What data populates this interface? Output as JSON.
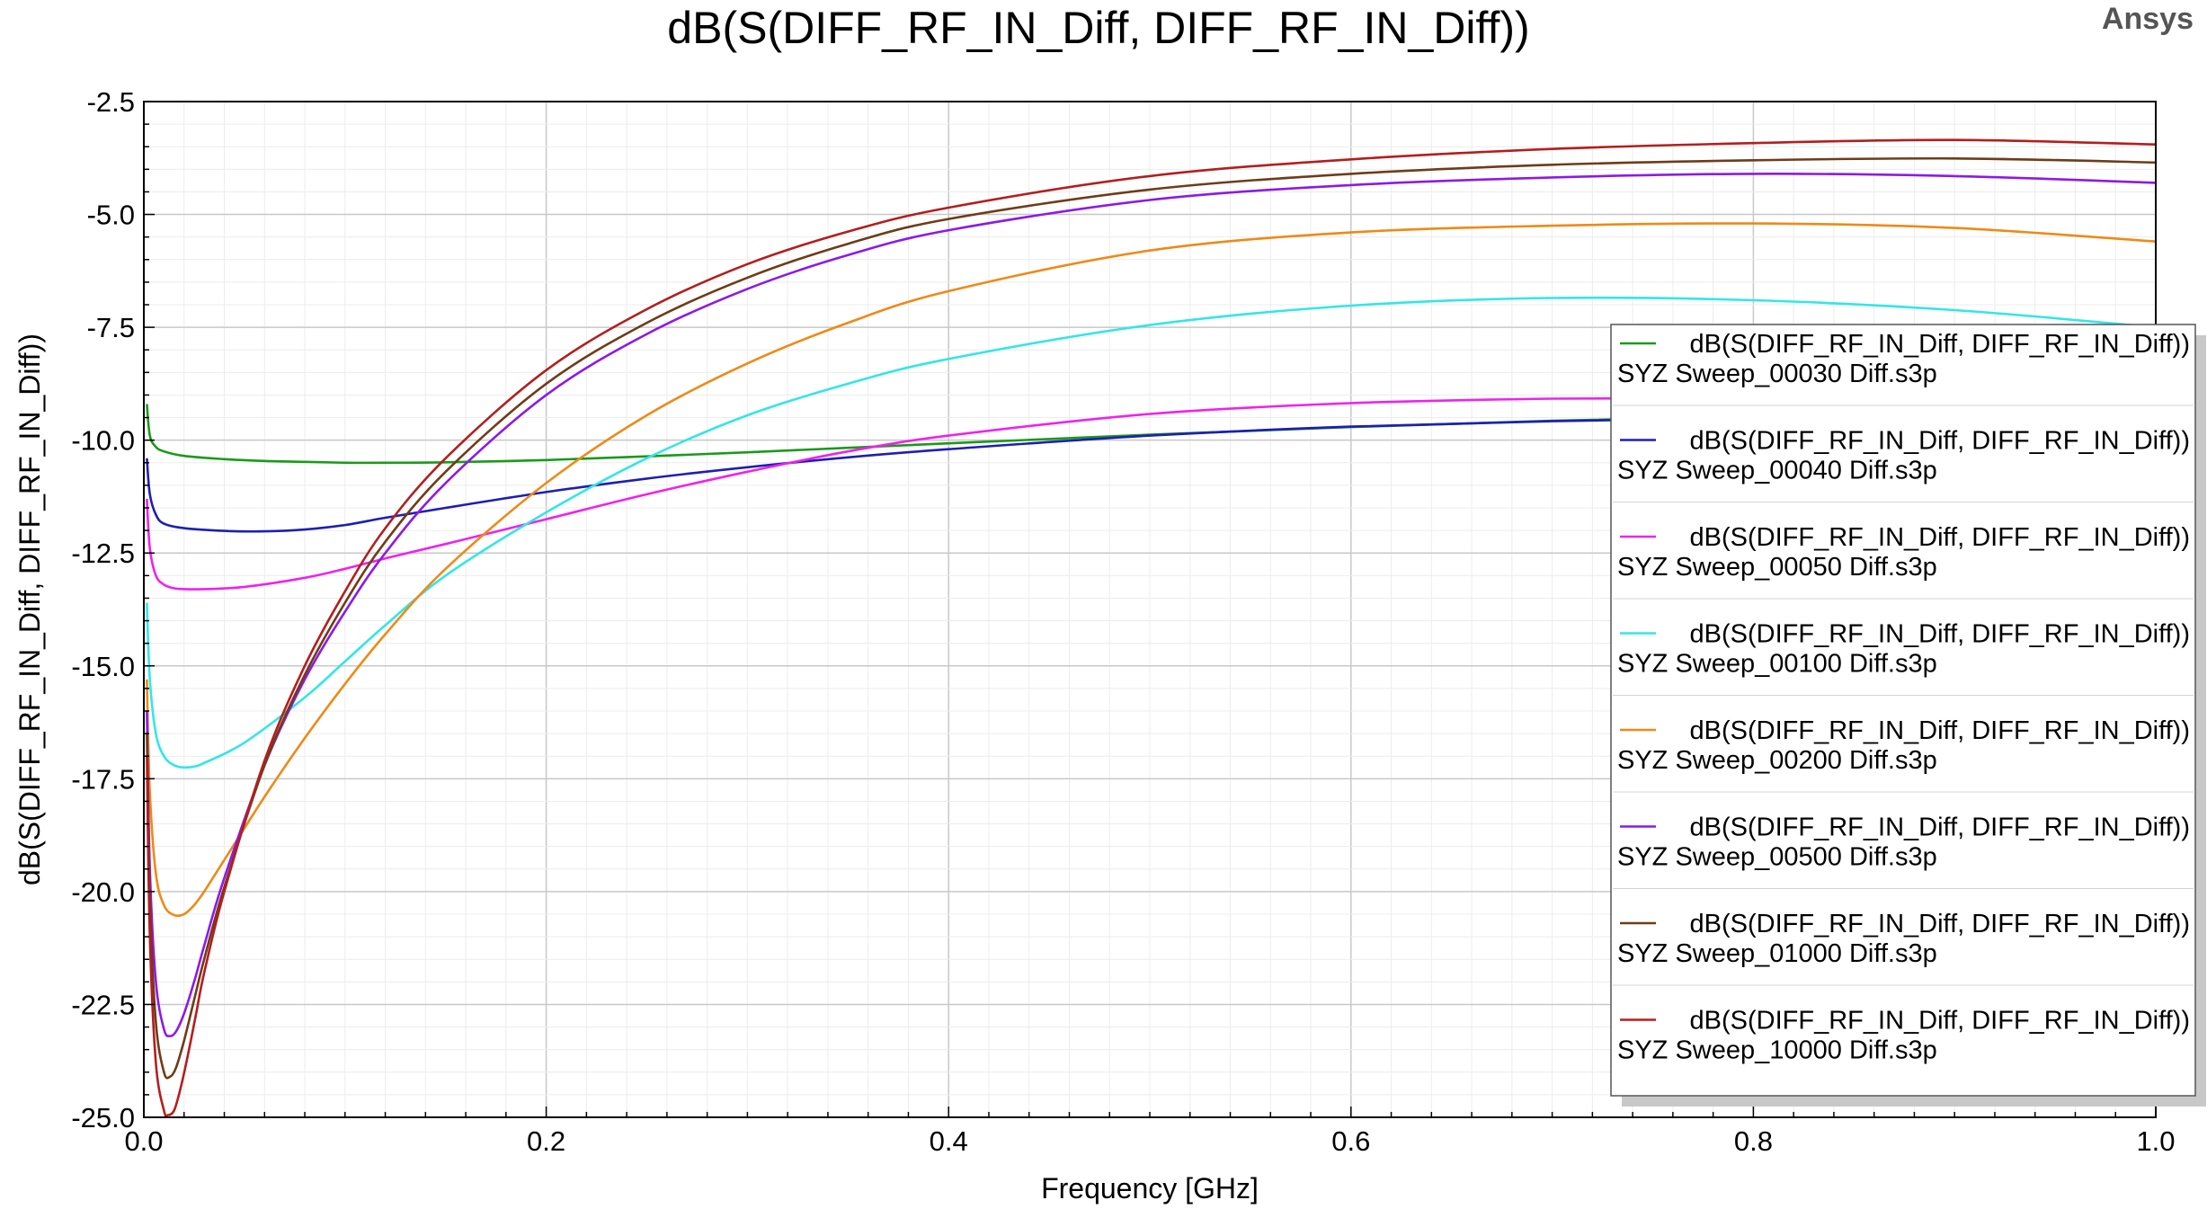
{
  "brand": "Ansys",
  "chart_data": {
    "type": "line",
    "title": "dB(S(DIFF_RF_IN_Diff, DIFF_RF_IN_Diff))",
    "xlabel": "Frequency [GHz]",
    "ylabel": "dB(S(DIFF_RF_IN_Diff, DIFF_RF_IN_Diff))",
    "xlim": [
      0.0,
      1.0
    ],
    "ylim": [
      -25.0,
      -2.5
    ],
    "xticks": [
      "0.0",
      "0.2",
      "0.4",
      "0.6",
      "0.8",
      "1.0"
    ],
    "yticks": [
      "-2.5",
      "-5.0",
      "-7.5",
      "-10.0",
      "-12.5",
      "-15.0",
      "-17.5",
      "-20.0",
      "-22.5",
      "-25.0"
    ],
    "grid": true,
    "legend_position": "right",
    "series": [
      {
        "legend_line1": "dB(S(DIFF_RF_IN_Diff, DIFF_RF_IN_Diff))",
        "legend_line2": "SYZ Sweep_00030 Diff.s3p",
        "color": "#1a9a1a",
        "x": [
          0.0015,
          0.003,
          0.006,
          0.01,
          0.02,
          0.04,
          0.06,
          0.08,
          0.1,
          0.12,
          0.15,
          0.2,
          0.25,
          0.3,
          0.35,
          0.4,
          0.5,
          0.6,
          0.7,
          0.8,
          0.9,
          1.0
        ],
        "y": [
          -9.2,
          -9.9,
          -10.15,
          -10.25,
          -10.35,
          -10.42,
          -10.46,
          -10.48,
          -10.5,
          -10.5,
          -10.49,
          -10.44,
          -10.36,
          -10.27,
          -10.17,
          -10.07,
          -9.88,
          -9.71,
          -9.57,
          -9.47,
          -9.4,
          -9.35
        ]
      },
      {
        "legend_line1": "dB(S(DIFF_RF_IN_Diff, DIFF_RF_IN_Diff))",
        "legend_line2": "SYZ Sweep_00040 Diff.s3p",
        "color": "#1e1eb4",
        "x": [
          0.0015,
          0.003,
          0.006,
          0.01,
          0.02,
          0.04,
          0.06,
          0.08,
          0.1,
          0.12,
          0.15,
          0.2,
          0.25,
          0.3,
          0.35,
          0.4,
          0.5,
          0.6,
          0.7,
          0.8,
          0.9,
          1.0
        ],
        "y": [
          -10.4,
          -11.2,
          -11.65,
          -11.85,
          -11.95,
          -12.01,
          -12.02,
          -11.98,
          -11.88,
          -11.72,
          -11.5,
          -11.15,
          -10.85,
          -10.6,
          -10.38,
          -10.2,
          -9.9,
          -9.7,
          -9.58,
          -9.5,
          -9.45,
          -9.42
        ]
      },
      {
        "legend_line1": "dB(S(DIFF_RF_IN_Diff, DIFF_RF_IN_Diff))",
        "legend_line2": "SYZ Sweep_00050 Diff.s3p",
        "color": "#ee22ee",
        "x": [
          0.0015,
          0.003,
          0.006,
          0.01,
          0.015,
          0.02,
          0.03,
          0.05,
          0.08,
          0.1,
          0.12,
          0.15,
          0.2,
          0.25,
          0.3,
          0.35,
          0.4,
          0.5,
          0.6,
          0.7,
          0.8,
          0.9,
          1.0
        ],
        "y": [
          -11.3,
          -12.4,
          -13.0,
          -13.2,
          -13.28,
          -13.3,
          -13.3,
          -13.25,
          -13.05,
          -12.85,
          -12.62,
          -12.3,
          -11.75,
          -11.2,
          -10.7,
          -10.25,
          -9.9,
          -9.42,
          -9.18,
          -9.08,
          -9.06,
          -9.08,
          -9.12
        ]
      },
      {
        "legend_line1": "dB(S(DIFF_RF_IN_Diff, DIFF_RF_IN_Diff))",
        "legend_line2": "SYZ Sweep_00100 Diff.s3p",
        "color": "#33e6e6",
        "x": [
          0.0015,
          0.003,
          0.006,
          0.01,
          0.015,
          0.02,
          0.025,
          0.03,
          0.05,
          0.08,
          0.1,
          0.12,
          0.15,
          0.2,
          0.25,
          0.3,
          0.35,
          0.4,
          0.5,
          0.6,
          0.7,
          0.8,
          0.9,
          1.0
        ],
        "y": [
          -13.6,
          -15.3,
          -16.5,
          -17.0,
          -17.2,
          -17.25,
          -17.23,
          -17.15,
          -16.7,
          -15.7,
          -14.9,
          -14.1,
          -13.0,
          -11.6,
          -10.4,
          -9.45,
          -8.75,
          -8.2,
          -7.45,
          -7.02,
          -6.85,
          -6.9,
          -7.12,
          -7.5
        ]
      },
      {
        "legend_line1": "dB(S(DIFF_RF_IN_Diff, DIFF_RF_IN_Diff))",
        "legend_line2": "SYZ Sweep_00200 Diff.s3p",
        "color": "#ee8a16",
        "x": [
          0.0015,
          0.003,
          0.006,
          0.01,
          0.015,
          0.02,
          0.025,
          0.03,
          0.04,
          0.06,
          0.08,
          0.1,
          0.12,
          0.15,
          0.2,
          0.25,
          0.3,
          0.35,
          0.4,
          0.5,
          0.6,
          0.7,
          0.8,
          0.9,
          1.0
        ],
        "y": [
          -15.3,
          -17.8,
          -19.6,
          -20.3,
          -20.52,
          -20.5,
          -20.3,
          -20.0,
          -19.3,
          -17.9,
          -16.6,
          -15.4,
          -14.3,
          -12.85,
          -10.95,
          -9.45,
          -8.3,
          -7.4,
          -6.7,
          -5.8,
          -5.4,
          -5.25,
          -5.2,
          -5.3,
          -5.6
        ]
      },
      {
        "legend_line1": "dB(S(DIFF_RF_IN_Diff, DIFF_RF_IN_Diff))",
        "legend_line2": "SYZ Sweep_00500 Diff.s3p",
        "color": "#8c1ae6",
        "x": [
          0.0015,
          0.003,
          0.006,
          0.01,
          0.013,
          0.016,
          0.02,
          0.025,
          0.03,
          0.04,
          0.06,
          0.08,
          0.1,
          0.12,
          0.15,
          0.2,
          0.25,
          0.3,
          0.35,
          0.4,
          0.5,
          0.6,
          0.7,
          0.8,
          0.9,
          1.0
        ],
        "y": [
          -16.0,
          -19.5,
          -22.0,
          -23.05,
          -23.2,
          -23.1,
          -22.7,
          -22.0,
          -21.2,
          -19.7,
          -17.2,
          -15.3,
          -13.8,
          -12.5,
          -10.95,
          -9.0,
          -7.65,
          -6.65,
          -5.9,
          -5.35,
          -4.68,
          -4.35,
          -4.18,
          -4.1,
          -4.15,
          -4.3
        ]
      },
      {
        "legend_line1": "dB(S(DIFF_RF_IN_Diff, DIFF_RF_IN_Diff))",
        "legend_line2": "SYZ Sweep_01000 Diff.s3p",
        "color": "#6e3c18",
        "x": [
          0.0015,
          0.003,
          0.006,
          0.01,
          0.013,
          0.016,
          0.02,
          0.025,
          0.03,
          0.04,
          0.06,
          0.08,
          0.1,
          0.12,
          0.15,
          0.2,
          0.25,
          0.3,
          0.35,
          0.4,
          0.5,
          0.6,
          0.7,
          0.8,
          0.9,
          1.0
        ],
        "y": [
          -16.5,
          -20.2,
          -22.9,
          -24.0,
          -24.1,
          -23.9,
          -23.3,
          -22.4,
          -21.5,
          -19.9,
          -17.2,
          -15.2,
          -13.6,
          -12.25,
          -10.7,
          -8.75,
          -7.4,
          -6.4,
          -5.65,
          -5.1,
          -4.45,
          -4.1,
          -3.9,
          -3.8,
          -3.76,
          -3.85
        ]
      },
      {
        "legend_line1": "dB(S(DIFF_RF_IN_Diff, DIFF_RF_IN_Diff))",
        "legend_line2": "SYZ Sweep_10000 Diff.s3p",
        "color": "#b41e1e",
        "x": [
          0.0015,
          0.003,
          0.006,
          0.01,
          0.012,
          0.015,
          0.018,
          0.022,
          0.026,
          0.03,
          0.04,
          0.06,
          0.08,
          0.1,
          0.12,
          0.15,
          0.2,
          0.25,
          0.3,
          0.35,
          0.4,
          0.5,
          0.6,
          0.7,
          0.8,
          0.9,
          1.0
        ],
        "y": [
          -17.0,
          -21.0,
          -23.8,
          -24.85,
          -24.95,
          -24.85,
          -24.4,
          -23.6,
          -22.7,
          -21.8,
          -20.0,
          -17.1,
          -15.0,
          -13.35,
          -11.95,
          -10.4,
          -8.45,
          -7.1,
          -6.1,
          -5.38,
          -4.85,
          -4.15,
          -3.78,
          -3.55,
          -3.42,
          -3.35,
          -3.45
        ]
      }
    ]
  }
}
